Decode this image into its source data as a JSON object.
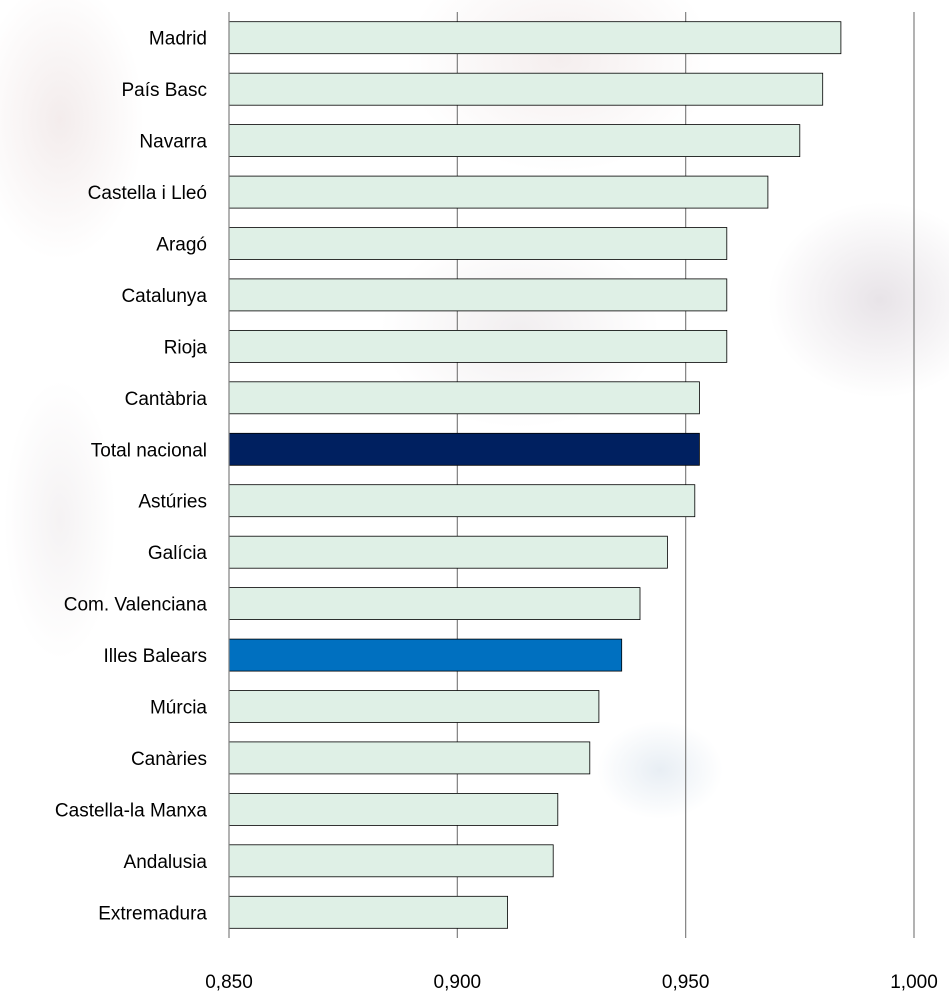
{
  "chart_data": {
    "type": "bar",
    "orientation": "horizontal",
    "categories": [
      "Madrid",
      "País Basc",
      "Navarra",
      "Castella i Lleó",
      "Aragó",
      "Catalunya",
      "Rioja",
      "Cantàbria",
      "Total nacional",
      "Astúries",
      "Galícia",
      "Com. Valenciana",
      "Illes Balears",
      "Múrcia",
      "Canàries",
      "Castella-la Manxa",
      "Andalusia",
      "Extremadura"
    ],
    "values": [
      0.984,
      0.98,
      0.975,
      0.968,
      0.959,
      0.959,
      0.959,
      0.953,
      0.953,
      0.952,
      0.946,
      0.94,
      0.936,
      0.931,
      0.929,
      0.922,
      0.921,
      0.911
    ],
    "xlim": [
      0.85,
      1.0
    ],
    "xticks": [
      0.85,
      0.9,
      0.95,
      1.0
    ],
    "xtick_labels": [
      "0,850",
      "0,900",
      "0,950",
      "1,000"
    ],
    "grid": "vertical",
    "title": "",
    "xlabel": "",
    "ylabel": "",
    "colors": {
      "default_bar": "#dff0e6",
      "highlight_total": "#002060",
      "highlight_balears": "#0070c0",
      "bar_outline": "#000000",
      "grid": "#808080"
    },
    "highlights": {
      "Total nacional": "highlight_total",
      "Illes Balears": "highlight_balears"
    }
  }
}
